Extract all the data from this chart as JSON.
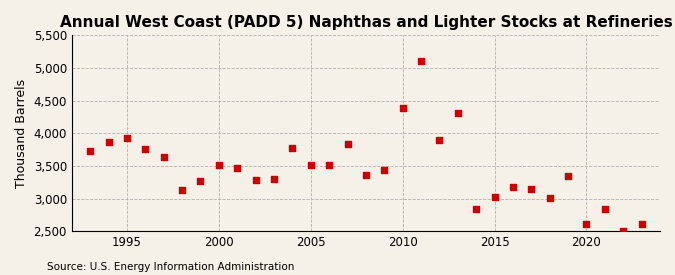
{
  "title": "Annual West Coast (PADD 5) Naphthas and Lighter Stocks at Refineries",
  "ylabel": "Thousand Barrels",
  "source": "Source: U.S. Energy Information Administration",
  "years": [
    1993,
    1994,
    1995,
    1996,
    1997,
    1998,
    1999,
    2000,
    2001,
    2002,
    2003,
    2004,
    2005,
    2006,
    2007,
    2008,
    2009,
    2010,
    2011,
    2012,
    2013,
    2014,
    2015,
    2016,
    2017,
    2018,
    2019,
    2020,
    2021,
    2022,
    2023
  ],
  "values": [
    3730,
    3870,
    3930,
    3760,
    3640,
    3130,
    3270,
    3510,
    3470,
    3280,
    3300,
    3780,
    3510,
    3510,
    3830,
    3360,
    3430,
    4380,
    5100,
    3890,
    4310,
    2840,
    3020,
    3170,
    3150,
    3010,
    3340,
    2610,
    2840,
    2500,
    2610
  ],
  "marker_color": "#cc0000",
  "marker_size": 20,
  "ylim_min": 2500,
  "ylim_max": 5500,
  "yticks": [
    2500,
    3000,
    3500,
    4000,
    4500,
    5000,
    5500
  ],
  "ytick_labels": [
    "2,500",
    "3,000",
    "3,500",
    "4,000",
    "4,500",
    "5,000",
    "5,500"
  ],
  "xlim_min": 1992,
  "xlim_max": 2024,
  "xticks": [
    1995,
    2000,
    2005,
    2010,
    2015,
    2020
  ],
  "background_color": "#f5f0e8",
  "grid_color": "#aaaaaa",
  "title_fontsize": 11,
  "label_fontsize": 9,
  "tick_fontsize": 8.5,
  "source_fontsize": 7.5
}
